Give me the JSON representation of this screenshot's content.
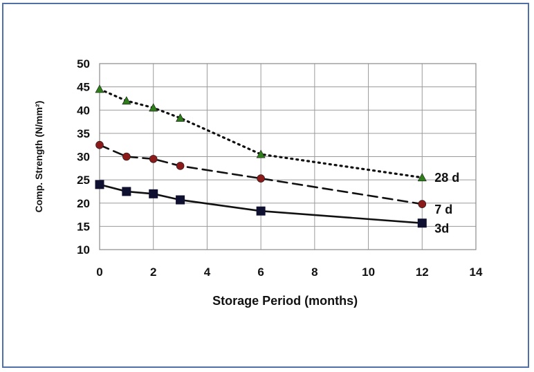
{
  "chart_data": {
    "type": "line",
    "title": "",
    "xlabel": "Storage Period (months)",
    "ylabel": "Comp. Strength (N/mm²)",
    "xlim": [
      0,
      14
    ],
    "ylim": [
      10,
      50
    ],
    "x_ticks": [
      "0",
      "2",
      "4",
      "6",
      "8",
      "10",
      "12",
      "14"
    ],
    "y_ticks": [
      "10",
      "15",
      "20",
      "25",
      "30",
      "35",
      "40",
      "45",
      "50"
    ],
    "grid": true,
    "legend": "none",
    "series": [
      {
        "name": "28 d",
        "marker": "triangle",
        "marker_color": "#2e7d1a",
        "line_style": "dotted",
        "line_color": "#111111",
        "x": [
          0,
          1,
          2,
          3,
          6,
          12
        ],
        "values": [
          44.5,
          42,
          40.5,
          38.3,
          30.5,
          25.5
        ]
      },
      {
        "name": "7 d",
        "marker": "circle",
        "marker_color": "#8b1a1a",
        "line_style": "dashed",
        "line_color": "#111111",
        "x": [
          0,
          1,
          2,
          3,
          6,
          12
        ],
        "values": [
          32.5,
          30,
          29.5,
          28,
          25.3,
          19.8
        ]
      },
      {
        "name": "3d",
        "marker": "square",
        "marker_color": "#101030",
        "line_style": "solid",
        "line_color": "#111111",
        "x": [
          0,
          1,
          2,
          3,
          6,
          12
        ],
        "values": [
          24,
          22.5,
          22,
          20.7,
          18.3,
          15.7
        ]
      }
    ]
  }
}
